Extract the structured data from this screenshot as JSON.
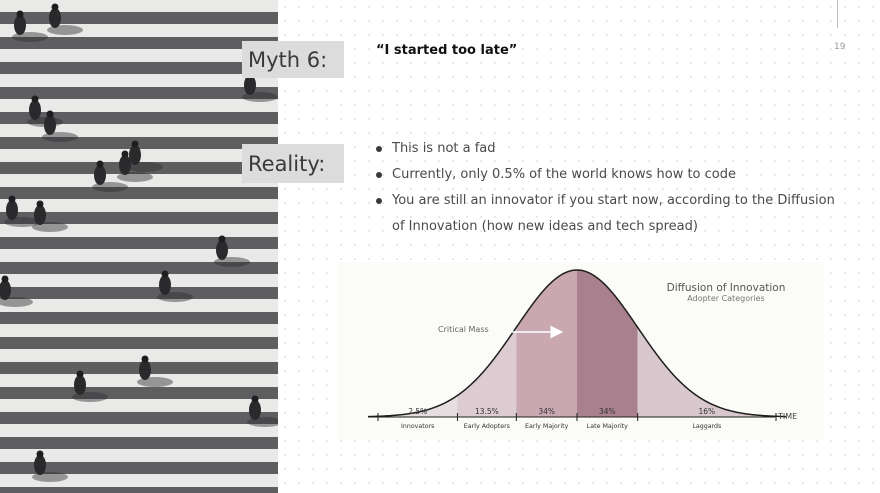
{
  "slide": {
    "page_number": "19",
    "myth_label": "Myth 6:",
    "myth_title": "“I started too late”",
    "reality_label": "Reality:",
    "bullets": [
      "This is not a fad",
      "Currently, only 0.5% of the world knows how to code",
      "You are still an innovator if you start now, according to the Diffusion of Innovation (how new ideas and tech spread)"
    ]
  },
  "chart_data": {
    "type": "area",
    "title": "Diffusion of Innovation",
    "subtitle": "Adopter Categories",
    "xlabel": "TIME",
    "annotation": "Critical Mass",
    "categories": [
      "Innovators",
      "Early Adopters",
      "Early Majority",
      "Late Majority",
      "Laggards"
    ],
    "values": [
      2.5,
      13.5,
      34,
      34,
      16
    ],
    "value_labels": [
      "2.5%",
      "13.5%",
      "34%",
      "34%",
      "16%"
    ],
    "colors": [
      "#e6dde0",
      "#dcccd2",
      "#c9a8b2",
      "#a9818e",
      "#d8c8ce"
    ]
  }
}
